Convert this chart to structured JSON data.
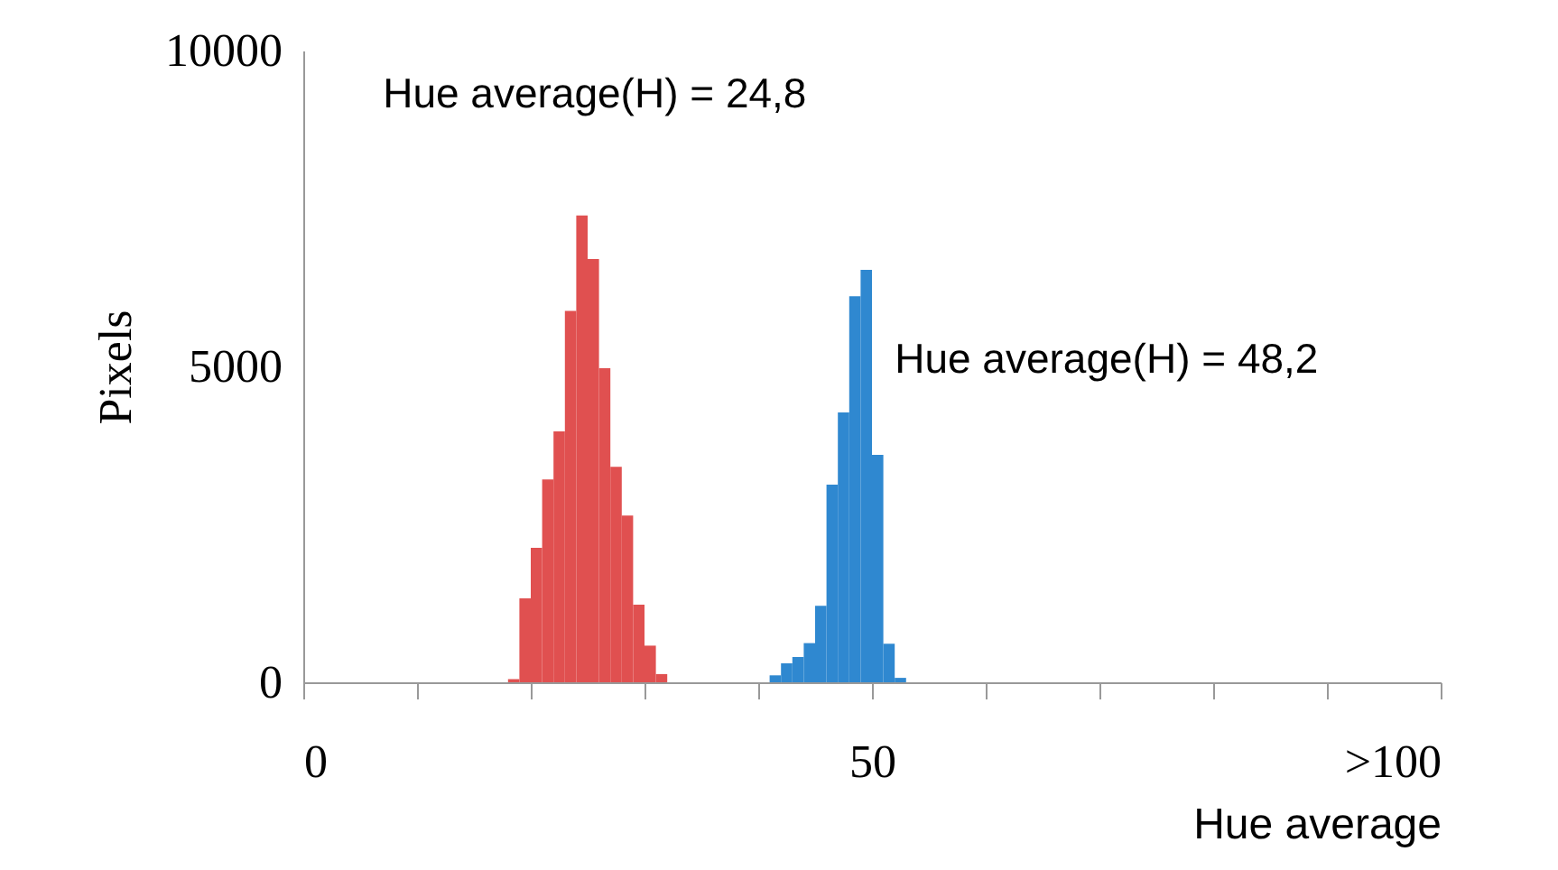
{
  "chart_data": {
    "type": "histogram",
    "bins": [
      18,
      19,
      20,
      21,
      22,
      23,
      24,
      25,
      26,
      27,
      28,
      29,
      30,
      31,
      32,
      33,
      34,
      35,
      36,
      37,
      38,
      39,
      40,
      41,
      42,
      43,
      44,
      45,
      46,
      47,
      48,
      49,
      50,
      51,
      52,
      53
    ],
    "series": [
      {
        "color": "#e05050",
        "values": [
          50,
          1330,
          2130,
          3210,
          3970,
          5880,
          7390,
          6700,
          4970,
          3410,
          2640,
          1230,
          580,
          130,
          null,
          null,
          null,
          null,
          null,
          null,
          null,
          null,
          null,
          null,
          null,
          null,
          null,
          null,
          null,
          null,
          null,
          null,
          null,
          null,
          null
        ]
      },
      {
        "color": "#2f88d0",
        "values": [
          null,
          null,
          null,
          null,
          null,
          null,
          null,
          null,
          null,
          null,
          null,
          null,
          null,
          null,
          null,
          null,
          null,
          null,
          null,
          null,
          null,
          null,
          null,
          110,
          300,
          400,
          620,
          1210,
          3130,
          4270,
          6110,
          6530,
          3600,
          610,
          70
        ]
      }
    ],
    "xlabel": "Hue average",
    "ylabel": "Pixels",
    "xlim": [
      0,
      100
    ],
    "xticks": [
      0,
      {
        "value": 10,
        "label": null
      },
      {
        "value": 20,
        "label": null
      },
      {
        "value": 30,
        "label": null
      },
      {
        "value": 40,
        "label": null
      },
      50,
      {
        "value": 60,
        "label": null
      },
      {
        "value": 70,
        "label": null
      },
      {
        "value": 80,
        "label": null
      },
      {
        "value": 90,
        "label": null
      },
      {
        "value": 100,
        "label": ">100"
      }
    ],
    "ylim": [
      0,
      10000
    ],
    "yticks": [
      0,
      5000,
      10000
    ],
    "grid": false,
    "legend": false,
    "annotations": [
      "Hue average(H) = 24,8",
      "Hue average(H) = 48,2"
    ]
  }
}
